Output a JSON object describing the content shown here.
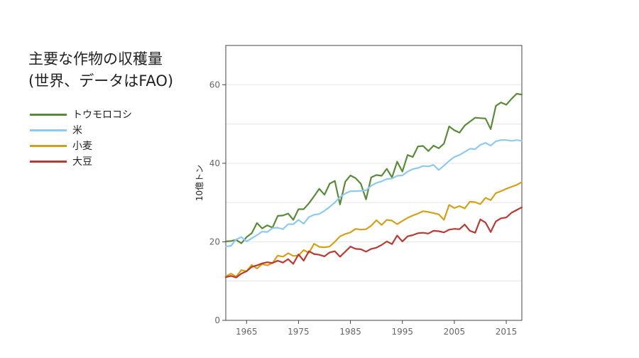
{
  "title_lines": [
    "主要な作物の収穫量",
    "(世界、データはFAO)"
  ],
  "legend": [
    {
      "label": "トウモロコシ",
      "color": "#5a8a3a"
    },
    {
      "label": "米",
      "color": "#8ec9ee"
    },
    {
      "label": "小麦",
      "color": "#d4a017"
    },
    {
      "label": "大豆",
      "color": "#b83a32"
    }
  ],
  "chart_data": {
    "type": "line",
    "title": "主要な作物の収穫量 (世界、データはFAO)",
    "xlabel": "",
    "ylabel": "10億トン",
    "xlim": [
      1961,
      2018
    ],
    "ylim": [
      0,
      70
    ],
    "grid": true,
    "legend_position": "left",
    "x_ticks": [
      1965,
      1975,
      1985,
      1995,
      2005,
      2015
    ],
    "y_ticks": [
      0,
      20,
      40,
      60
    ],
    "x": [
      1961,
      1962,
      1963,
      1964,
      1965,
      1966,
      1967,
      1968,
      1969,
      1970,
      1971,
      1972,
      1973,
      1974,
      1975,
      1976,
      1977,
      1978,
      1979,
      1980,
      1981,
      1982,
      1983,
      1984,
      1985,
      1986,
      1987,
      1988,
      1989,
      1990,
      1991,
      1992,
      1993,
      1994,
      1995,
      1996,
      1997,
      1998,
      1999,
      2000,
      2001,
      2002,
      2003,
      2004,
      2005,
      2006,
      2007,
      2008,
      2009,
      2010,
      2011,
      2012,
      2013,
      2014,
      2015,
      2016,
      2017,
      2018
    ],
    "series": [
      {
        "name": "トウモロコシ",
        "color": "#5a8a3a",
        "values": [
          20.1,
          20.2,
          20.5,
          19.6,
          21.2,
          22.2,
          24.8,
          23.4,
          24.2,
          23.6,
          26.6,
          26.7,
          27.2,
          25.6,
          28.3,
          28.3,
          29.8,
          31.6,
          33.5,
          32.0,
          34.8,
          35.5,
          29.5,
          35.3,
          36.9,
          36.2,
          34.8,
          30.8,
          36.4,
          37.0,
          36.8,
          38.6,
          36.4,
          40.4,
          37.9,
          42.1,
          41.6,
          44.3,
          44.4,
          43.1,
          44.5,
          43.8,
          45.0,
          49.4,
          48.4,
          47.8,
          49.6,
          50.6,
          51.6,
          51.5,
          51.4,
          48.7,
          54.6,
          55.5,
          54.9,
          56.4,
          57.7,
          57.5
        ]
      },
      {
        "name": "米",
        "color": "#8ec9ee",
        "values": [
          18.8,
          19.0,
          20.6,
          21.2,
          20.1,
          20.9,
          21.7,
          22.6,
          22.5,
          23.5,
          23.6,
          23.2,
          24.5,
          24.5,
          25.6,
          24.6,
          26.3,
          26.9,
          27.1,
          27.9,
          28.9,
          30.0,
          31.4,
          32.3,
          32.9,
          32.9,
          33.0,
          33.1,
          34.3,
          35.0,
          35.4,
          36.0,
          36.1,
          36.8,
          36.9,
          37.9,
          38.5,
          38.8,
          39.3,
          39.2,
          39.6,
          38.3,
          39.4,
          40.6,
          41.6,
          42.1,
          42.9,
          43.7,
          43.6,
          44.7,
          45.2,
          44.5,
          45.6,
          45.9,
          45.9,
          45.7,
          45.9,
          45.7
        ]
      },
      {
        "name": "小麦",
        "color": "#d4a017",
        "values": [
          11.2,
          11.9,
          11.1,
          12.8,
          12.5,
          14.1,
          13.2,
          14.3,
          14.0,
          14.6,
          16.5,
          16.2,
          17.1,
          16.4,
          16.5,
          17.9,
          17.2,
          19.5,
          18.7,
          18.6,
          18.8,
          20.0,
          21.4,
          22.0,
          22.4,
          23.3,
          23.1,
          23.2,
          24.1,
          25.5,
          24.3,
          25.6,
          25.4,
          24.5,
          25.3,
          26.1,
          26.7,
          27.2,
          27.8,
          27.6,
          27.3,
          27.0,
          25.6,
          29.4,
          28.6,
          29.1,
          28.5,
          30.2,
          30.1,
          29.6,
          31.2,
          30.6,
          32.4,
          32.9,
          33.5,
          34.0,
          34.5,
          35.2
        ]
      },
      {
        "name": "大豆",
        "color": "#b83a32",
        "values": [
          11.0,
          11.3,
          10.9,
          11.9,
          12.5,
          13.6,
          14.0,
          14.5,
          14.8,
          14.6,
          15.2,
          14.7,
          15.6,
          14.4,
          16.8,
          15.2,
          17.6,
          16.9,
          16.7,
          16.3,
          17.3,
          17.6,
          16.2,
          17.5,
          18.8,
          18.2,
          18.1,
          17.5,
          18.2,
          18.5,
          19.2,
          20.1,
          19.4,
          21.6,
          20.1,
          21.4,
          21.7,
          22.2,
          22.3,
          22.1,
          22.8,
          22.7,
          22.4,
          23.1,
          23.3,
          23.2,
          24.4,
          22.8,
          22.3,
          25.7,
          24.9,
          22.5,
          25.2,
          26.0,
          26.2,
          27.4,
          28.1,
          28.8
        ]
      }
    ]
  }
}
